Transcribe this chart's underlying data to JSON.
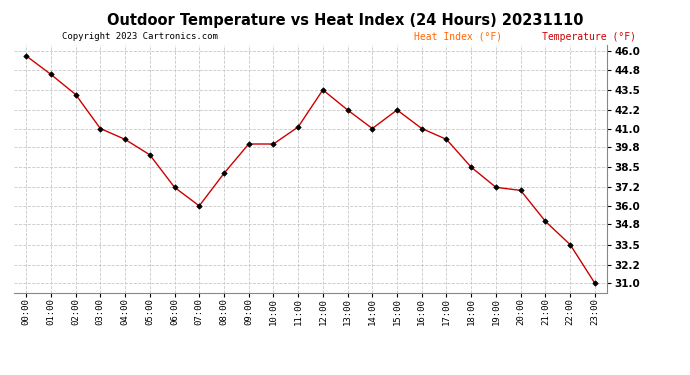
{
  "title": "Outdoor Temperature vs Heat Index (24 Hours) 20231110",
  "copyright": "Copyright 2023 Cartronics.com",
  "legend_heat": "Heat Index (°F)",
  "legend_temp": "Temperature (°F)",
  "hours": [
    "00:00",
    "01:00",
    "02:00",
    "03:00",
    "04:00",
    "05:00",
    "06:00",
    "07:00",
    "08:00",
    "09:00",
    "10:00",
    "11:00",
    "12:00",
    "13:00",
    "14:00",
    "15:00",
    "16:00",
    "17:00",
    "18:00",
    "19:00",
    "20:00",
    "21:00",
    "22:00",
    "23:00"
  ],
  "values": [
    45.7,
    44.5,
    43.2,
    41.0,
    40.3,
    39.3,
    37.2,
    36.0,
    38.1,
    40.0,
    40.0,
    41.1,
    43.5,
    42.2,
    41.0,
    42.2,
    41.0,
    40.3,
    38.5,
    37.2,
    37.0,
    35.0,
    33.5,
    31.0
  ],
  "line_color": "#cc0000",
  "marker_color": "#000000",
  "title_color": "#000000",
  "legend_heat_color": "#ff6600",
  "legend_temp_color": "#cc0000",
  "bg_color": "#ffffff",
  "grid_color": "#c8c8c8",
  "ymin": 30.4,
  "ymax": 46.4,
  "yticks": [
    31.0,
    32.2,
    33.5,
    34.8,
    36.0,
    37.2,
    38.5,
    39.8,
    41.0,
    42.2,
    43.5,
    44.8,
    46.0
  ]
}
